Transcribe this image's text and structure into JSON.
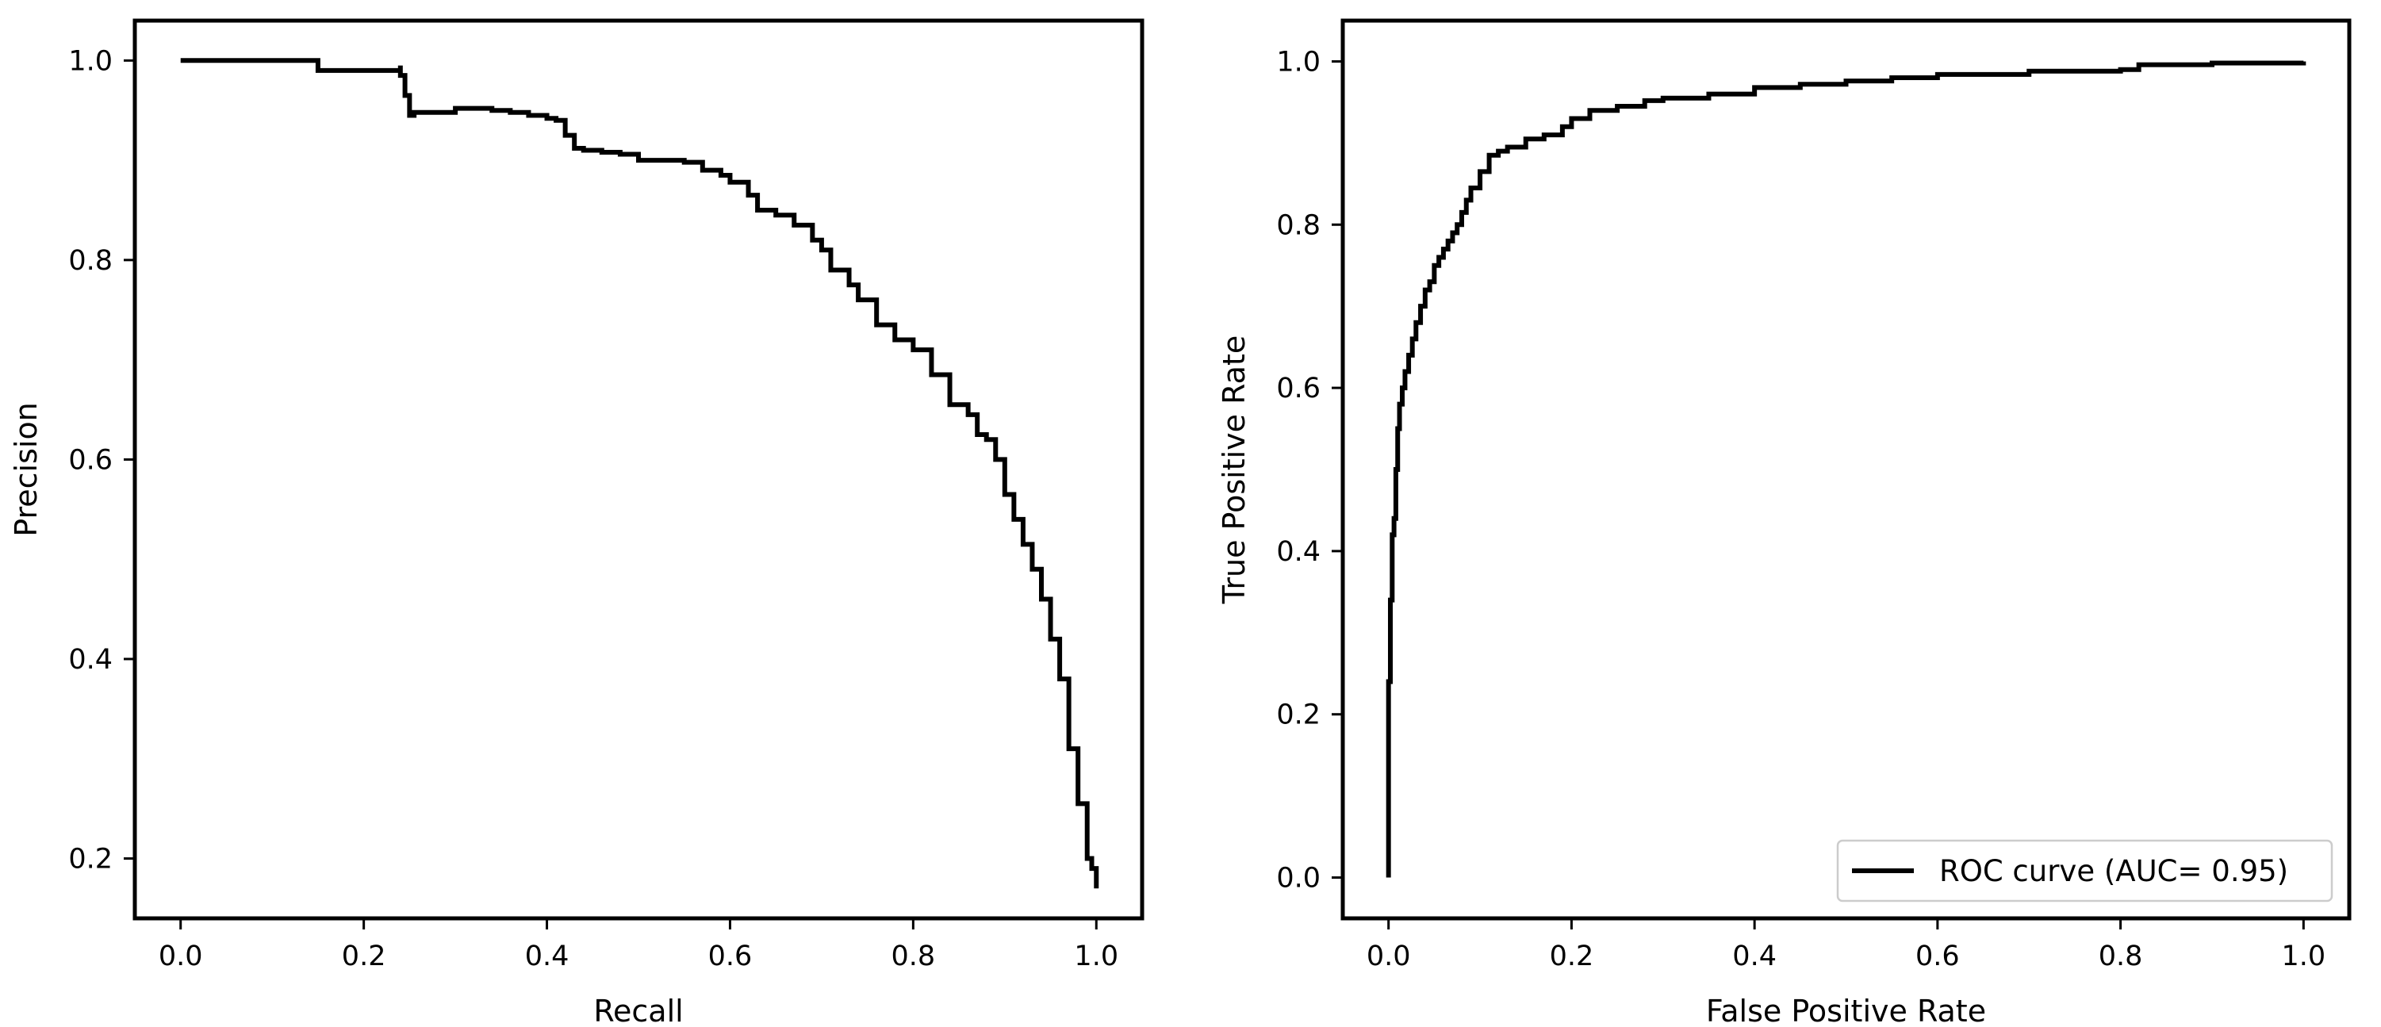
{
  "chart_data": [
    {
      "type": "line",
      "title": "",
      "xlabel": "Recall",
      "ylabel": "Precision",
      "xlim": [
        -0.05,
        1.05
      ],
      "ylim": [
        0.14,
        1.04
      ],
      "xticks": [
        0.0,
        0.2,
        0.4,
        0.6,
        0.8,
        1.0
      ],
      "xtick_labels": [
        "0.0",
        "0.2",
        "0.4",
        "0.6",
        "0.8",
        "1.0"
      ],
      "yticks": [
        0.2,
        0.4,
        0.6,
        0.8,
        1.0
      ],
      "ytick_labels": [
        "0.2",
        "0.4",
        "0.6",
        "0.8",
        "1.0"
      ],
      "grid": false,
      "legend": null,
      "series": [
        {
          "color": "#000000",
          "step": true,
          "x": [
            0.0,
            0.15,
            0.15,
            0.24,
            0.24,
            0.245,
            0.245,
            0.25,
            0.25,
            0.255,
            0.255,
            0.3,
            0.34,
            0.36,
            0.38,
            0.4,
            0.41,
            0.42,
            0.42,
            0.43,
            0.43,
            0.44,
            0.44,
            0.46,
            0.48,
            0.5,
            0.5,
            0.52,
            0.55,
            0.57,
            0.59,
            0.6,
            0.62,
            0.63,
            0.65,
            0.67,
            0.69,
            0.7,
            0.71,
            0.73,
            0.74,
            0.76,
            0.78,
            0.8,
            0.82,
            0.82,
            0.84,
            0.84,
            0.86,
            0.87,
            0.87,
            0.88,
            0.89,
            0.9,
            0.9,
            0.91,
            0.92,
            0.93,
            0.94,
            0.95,
            0.96,
            0.97,
            0.97,
            0.98,
            0.98,
            0.99,
            0.99,
            0.995,
            1.0
          ],
          "y": [
            1.0,
            1.0,
            0.99,
            0.995,
            0.985,
            0.985,
            0.965,
            0.965,
            0.945,
            0.945,
            0.948,
            0.952,
            0.95,
            0.948,
            0.945,
            0.942,
            0.94,
            0.94,
            0.925,
            0.925,
            0.912,
            0.912,
            0.91,
            0.908,
            0.906,
            0.905,
            0.9,
            0.9,
            0.898,
            0.89,
            0.885,
            0.878,
            0.865,
            0.85,
            0.845,
            0.835,
            0.82,
            0.81,
            0.79,
            0.775,
            0.76,
            0.735,
            0.72,
            0.71,
            0.695,
            0.685,
            0.67,
            0.655,
            0.645,
            0.635,
            0.625,
            0.62,
            0.6,
            0.58,
            0.565,
            0.54,
            0.515,
            0.49,
            0.46,
            0.42,
            0.38,
            0.33,
            0.31,
            0.27,
            0.255,
            0.22,
            0.2,
            0.19,
            0.17
          ]
        }
      ]
    },
    {
      "type": "line",
      "title": "",
      "xlabel": "False Positive Rate",
      "ylabel": "True Positive Rate",
      "xlim": [
        -0.05,
        1.05
      ],
      "ylim": [
        -0.05,
        1.05
      ],
      "xticks": [
        0.0,
        0.2,
        0.4,
        0.6,
        0.8,
        1.0
      ],
      "xtick_labels": [
        "0.0",
        "0.2",
        "0.4",
        "0.6",
        "0.8",
        "1.0"
      ],
      "yticks": [
        0.0,
        0.2,
        0.4,
        0.6,
        0.8,
        1.0
      ],
      "ytick_labels": [
        "0.0",
        "0.2",
        "0.4",
        "0.6",
        "0.8",
        "1.0"
      ],
      "grid": false,
      "legend": "lower-right",
      "series": [
        {
          "name": "ROC curve (AUC= 0.95)",
          "color": "#000000",
          "step": true,
          "x": [
            0.0,
            0.0,
            0.002,
            0.002,
            0.004,
            0.006,
            0.008,
            0.01,
            0.012,
            0.015,
            0.018,
            0.022,
            0.026,
            0.03,
            0.035,
            0.04,
            0.045,
            0.05,
            0.055,
            0.06,
            0.065,
            0.07,
            0.075,
            0.08,
            0.085,
            0.09,
            0.1,
            0.11,
            0.12,
            0.13,
            0.15,
            0.17,
            0.19,
            0.2,
            0.22,
            0.25,
            0.28,
            0.3,
            0.35,
            0.4,
            0.45,
            0.5,
            0.55,
            0.6,
            0.7,
            0.8,
            0.82,
            0.82,
            0.9,
            1.0
          ],
          "y": [
            0.0,
            0.24,
            0.26,
            0.34,
            0.42,
            0.44,
            0.5,
            0.55,
            0.58,
            0.6,
            0.62,
            0.64,
            0.66,
            0.68,
            0.7,
            0.72,
            0.73,
            0.75,
            0.76,
            0.77,
            0.78,
            0.79,
            0.8,
            0.815,
            0.83,
            0.845,
            0.865,
            0.885,
            0.89,
            0.895,
            0.905,
            0.91,
            0.92,
            0.93,
            0.94,
            0.945,
            0.952,
            0.955,
            0.96,
            0.968,
            0.972,
            0.976,
            0.98,
            0.984,
            0.988,
            0.99,
            0.99,
            0.996,
            0.998,
            1.0
          ]
        }
      ]
    }
  ]
}
